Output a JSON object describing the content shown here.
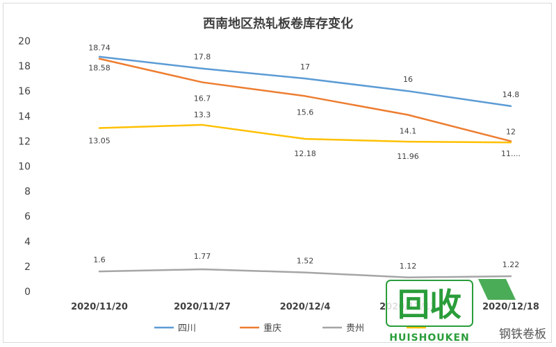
{
  "chart_data": {
    "type": "line",
    "title": "西南地区热轧板卷库存变化",
    "categories": [
      "2020/11/20",
      "2020/11/27",
      "2020/12/4",
      "2020/12/11",
      "2020/12/18"
    ],
    "xlabel": "",
    "ylabel": "",
    "ylim": [
      0,
      20
    ],
    "yticks": [
      "0",
      "2",
      "4",
      "6",
      "8",
      "10",
      "12",
      "14",
      "16",
      "18",
      "20"
    ],
    "grid": false,
    "legend_position": "bottom",
    "series": [
      {
        "name": "四川",
        "color": "#5b9bd5",
        "values": [
          18.74,
          17.8,
          17,
          16,
          14.8
        ],
        "labels": [
          "18.74",
          "17.8",
          "17",
          "16",
          "14.8"
        ]
      },
      {
        "name": "重庆",
        "color": "#ed7d31",
        "values": [
          18.58,
          16.7,
          15.6,
          14.1,
          12
        ],
        "labels": [
          "18.58",
          "16.7",
          "15.6",
          "14.1",
          "12"
        ]
      },
      {
        "name": "贵州",
        "color": "#a5a5a5",
        "values": [
          1.6,
          1.77,
          1.52,
          1.12,
          1.22
        ],
        "labels": [
          "1.6",
          "1.77",
          "1.52",
          "1.12",
          "1.22"
        ]
      },
      {
        "name": "",
        "color": "#ffc000",
        "values": [
          13.05,
          13.3,
          12.18,
          11.96,
          11.9
        ],
        "labels": [
          "13.05",
          "13.3",
          "12.18",
          "11.96",
          "11...."
        ]
      }
    ]
  },
  "watermark": {
    "main_text": "回收",
    "sub_text": "HUISHOUKEN",
    "cn_text": "钢铁卷板",
    "color": "#2a9d3a"
  }
}
